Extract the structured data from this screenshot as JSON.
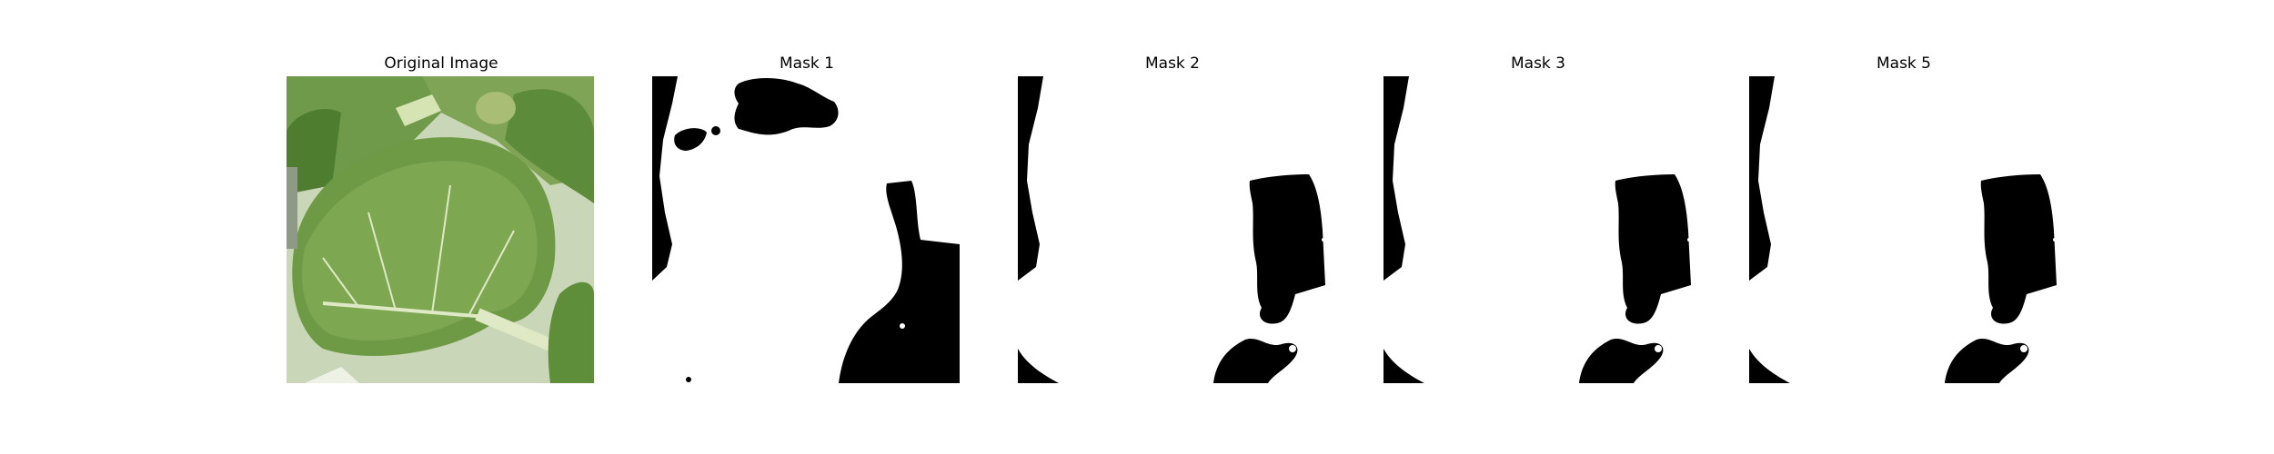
{
  "panels": [
    {
      "title": "Original Image",
      "kind": "photo",
      "subject": "leaf-crop-icon"
    },
    {
      "title": "Mask 1",
      "kind": "mask"
    },
    {
      "title": "Mask 2",
      "kind": "mask"
    },
    {
      "title": "Mask 3",
      "kind": "mask"
    },
    {
      "title": "Mask 5",
      "kind": "mask"
    }
  ],
  "colors": {
    "mask_foreground": "#ffffff",
    "mask_background": "#000000",
    "leaf_dark": "#4f7a2e",
    "leaf_mid": "#6f9a45",
    "leaf_light": "#a9c879",
    "vein": "#dfe9c5",
    "page_background": "#ffffff"
  }
}
